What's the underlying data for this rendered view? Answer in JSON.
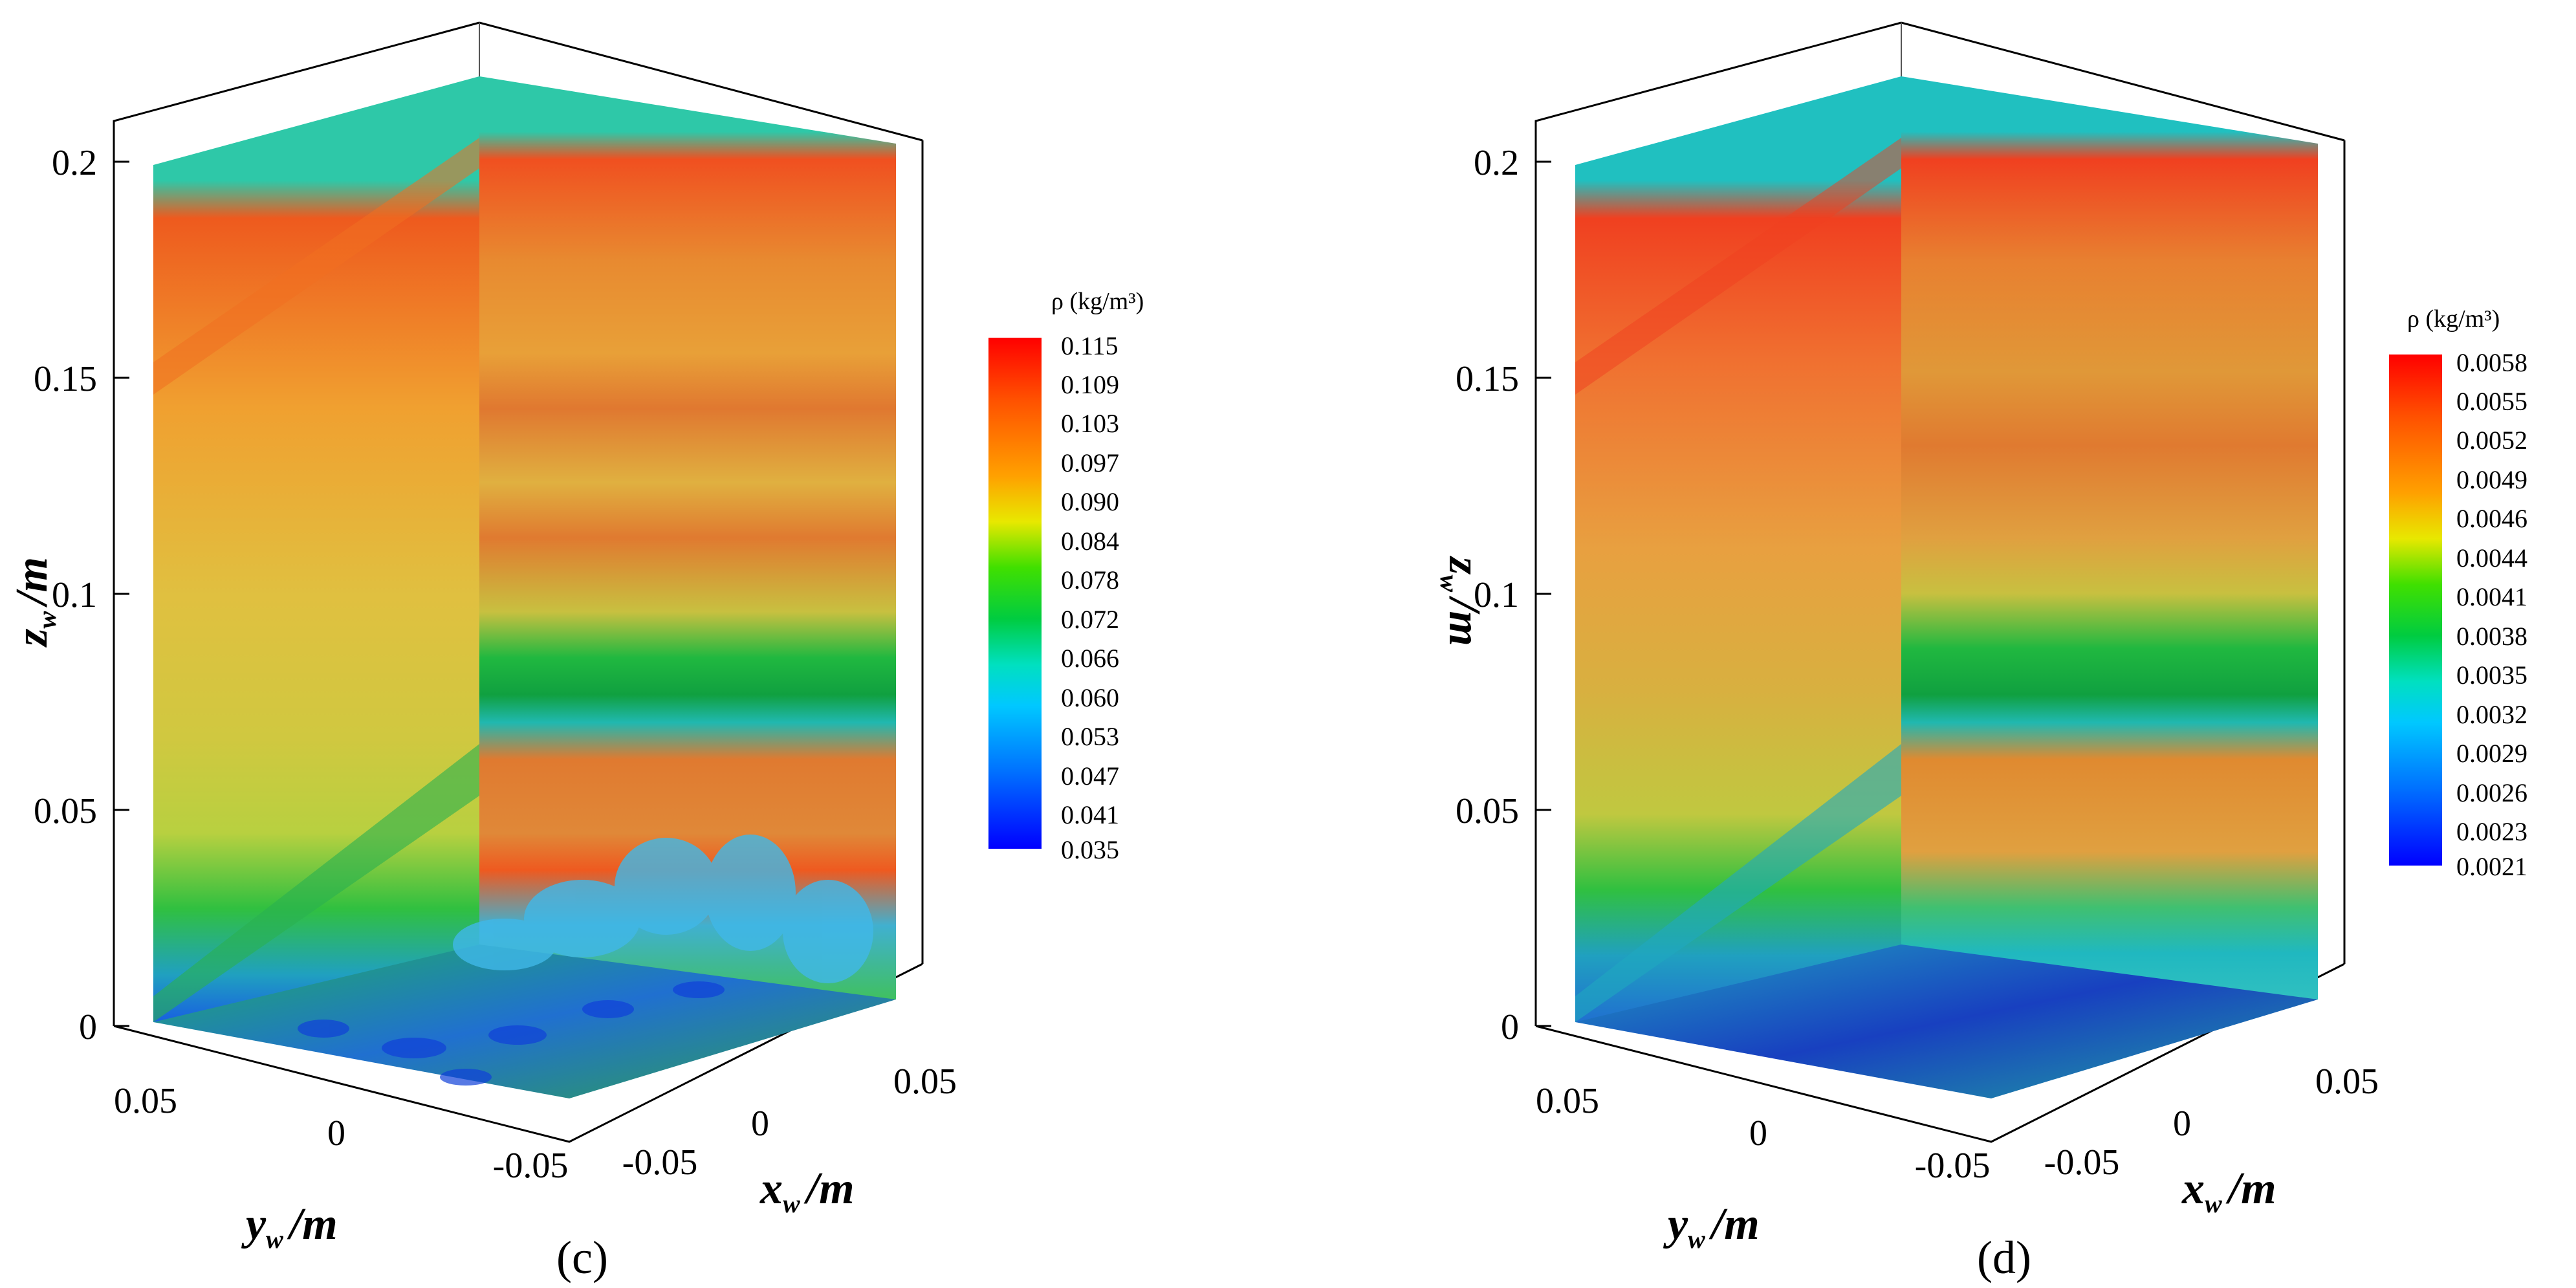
{
  "colormap": [
    "#0000ff",
    "#0090ff",
    "#00e0e0",
    "#00cc44",
    "#00e000",
    "#7fe000",
    "#e8e800",
    "#ffb000",
    "#ff6a00",
    "#ff0000"
  ],
  "panels": [
    {
      "id": "c",
      "caption": "(c)",
      "axes": {
        "z": {
          "label": "z",
          "sub": "w",
          "unit": "/m",
          "ticks": [
            "0",
            "0.05",
            "0.1",
            "0.15",
            "0.2"
          ]
        },
        "y": {
          "label": "y",
          "sub": "w",
          "unit": "/m",
          "ticks": [
            "0.05",
            "0",
            "-0.05"
          ]
        },
        "x": {
          "label": "x",
          "sub": "w",
          "unit": "/m",
          "ticks": [
            "-0.05",
            "0",
            "0.05"
          ]
        }
      },
      "colorbar": {
        "title": "ρ (kg/m³)",
        "values": [
          "0.115",
          "0.109",
          "0.103",
          "0.097",
          "0.090",
          "0.084",
          "0.078",
          "0.072",
          "0.066",
          "0.060",
          "0.053",
          "0.047",
          "0.041",
          "0.035"
        ]
      }
    },
    {
      "id": "d",
      "caption": "(d)",
      "axes": {
        "z": {
          "label": "z",
          "sub": "w",
          "unit": "/m",
          "ticks": [
            "0",
            "0.05",
            "0.1",
            "0.15",
            "0.2"
          ]
        },
        "y": {
          "label": "y",
          "sub": "w",
          "unit": "/m",
          "ticks": [
            "0.05",
            "0",
            "-0.05"
          ]
        },
        "x": {
          "label": "x",
          "sub": "w",
          "unit": "/m",
          "ticks": [
            "-0.05",
            "0",
            "0.05"
          ]
        }
      },
      "colorbar": {
        "title": "ρ (kg/m³)",
        "values": [
          "0.0058",
          "0.0055",
          "0.0052",
          "0.0049",
          "0.0046",
          "0.0044",
          "0.0041",
          "0.0038",
          "0.0035",
          "0.0032",
          "0.0029",
          "0.0026",
          "0.0023",
          "0.0021"
        ]
      }
    }
  ],
  "chart_data": [
    {
      "type": "heatmap",
      "title": "",
      "variable": "ρ (kg/m³)",
      "xlabel": "x_w /m",
      "ylabel": "y_w /m",
      "zlabel": "z_w /m",
      "xlim": [
        -0.05,
        0.05
      ],
      "ylim": [
        -0.05,
        0.05
      ],
      "zlim": [
        0,
        0.2
      ],
      "color_range": [
        0.035,
        0.115
      ],
      "colorbar_levels": [
        0.115,
        0.109,
        0.103,
        0.097,
        0.09,
        0.084,
        0.078,
        0.072,
        0.066,
        0.06,
        0.053,
        0.047,
        0.041,
        0.035
      ]
    },
    {
      "type": "heatmap",
      "title": "",
      "variable": "ρ (kg/m³)",
      "xlabel": "x_w /m",
      "ylabel": "y_w /m",
      "zlabel": "z_w /m",
      "xlim": [
        -0.05,
        0.05
      ],
      "ylim": [
        -0.05,
        0.05
      ],
      "zlim": [
        0,
        0.2
      ],
      "color_range": [
        0.0021,
        0.0058
      ],
      "colorbar_levels": [
        0.0058,
        0.0055,
        0.0052,
        0.0049,
        0.0046,
        0.0044,
        0.0041,
        0.0038,
        0.0035,
        0.0032,
        0.0029,
        0.0026,
        0.0023,
        0.0021
      ]
    }
  ]
}
